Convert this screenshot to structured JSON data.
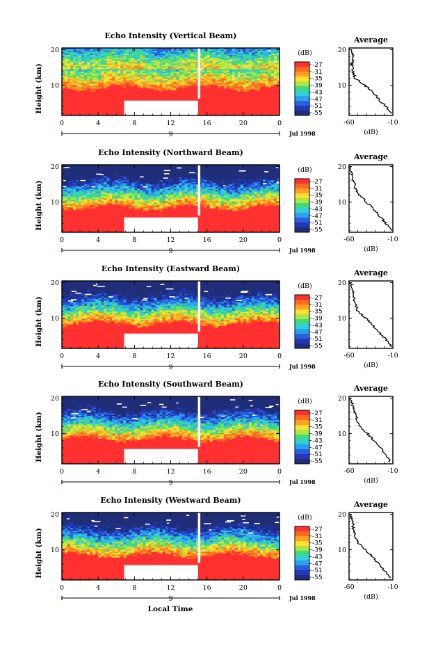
{
  "colors": {
    "red": "#ff4040",
    "white": "#ffffff",
    "frame": "#000000",
    "colorbar": [
      "#ff3030",
      "#ff6a20",
      "#ffa020",
      "#ffe030",
      "#a8e840",
      "#40d880",
      "#30d0d8",
      "#2aa0f0",
      "#2860e0",
      "#2238b8",
      "#202e7a"
    ]
  },
  "labels": {
    "ylabel": "Height (km)",
    "xlabel": "Local Time",
    "unit": "(dB)",
    "average_title": "Average",
    "average_xlabel": "(dB)",
    "date": "Jul 1998",
    "day": "9"
  },
  "chart_data": [
    {
      "type": "heatmap",
      "title": "Echo Intensity (Vertical Beam)",
      "x_ticks": [
        "0",
        "4",
        "8",
        "12",
        "16",
        "20",
        "0"
      ],
      "y_ticks": [
        "20",
        "10"
      ],
      "xlim": [
        0,
        24
      ],
      "ylim": [
        1.5,
        20.5
      ],
      "colorbar_ticks": [
        "-27",
        "-31",
        "-35",
        "-39",
        "-43",
        "-47",
        "-51",
        "-55"
      ],
      "profile": {
        "title": "Average",
        "xlabel": "(dB)",
        "x_ticks": [
          "-60",
          "-10"
        ],
        "y_ticks": [
          "20",
          "10"
        ],
        "xlim": [
          -60,
          -10
        ],
        "points": [
          [
            -10,
            2
          ],
          [
            -18,
            4
          ],
          [
            -26,
            6
          ],
          [
            -32,
            8
          ],
          [
            -42,
            10
          ],
          [
            -53,
            12
          ],
          [
            -56,
            14
          ],
          [
            -57,
            16
          ],
          [
            -55,
            18
          ],
          [
            -57,
            20
          ]
        ]
      }
    },
    {
      "type": "heatmap",
      "title": "Echo Intensity (Northward Beam)",
      "x_ticks": [
        "0",
        "4",
        "8",
        "12",
        "16",
        "20",
        "0"
      ],
      "y_ticks": [
        "20",
        "10"
      ],
      "xlim": [
        0,
        24
      ],
      "ylim": [
        1.5,
        20.5
      ],
      "colorbar_ticks": [
        "-27",
        "-31",
        "-35",
        "-39",
        "-43",
        "-47",
        "-51",
        "-55"
      ],
      "profile": {
        "title": "Average",
        "xlabel": "(dB)",
        "x_ticks": [
          "-60",
          "-10"
        ],
        "y_ticks": [
          "20",
          "10"
        ],
        "xlim": [
          -60,
          -10
        ],
        "points": [
          [
            -12,
            2
          ],
          [
            -18,
            4
          ],
          [
            -25,
            6
          ],
          [
            -32,
            8
          ],
          [
            -40,
            10
          ],
          [
            -48,
            12
          ],
          [
            -53,
            14
          ],
          [
            -55,
            16
          ],
          [
            -57,
            18
          ],
          [
            -58,
            20
          ]
        ]
      }
    },
    {
      "type": "heatmap",
      "title": "Echo Intensity (Eastward Beam)",
      "x_ticks": [
        "0",
        "4",
        "8",
        "12",
        "16",
        "20",
        "0"
      ],
      "y_ticks": [
        "20",
        "10"
      ],
      "xlim": [
        0,
        24
      ],
      "ylim": [
        1.5,
        20.5
      ],
      "colorbar_ticks": [
        "-27",
        "-31",
        "-35",
        "-39",
        "-43",
        "-47",
        "-51",
        "-55"
      ],
      "profile": {
        "title": "Average",
        "xlabel": "(dB)",
        "x_ticks": [
          "-60",
          "-10"
        ],
        "y_ticks": [
          "20",
          "10"
        ],
        "xlim": [
          -60,
          -10
        ],
        "points": [
          [
            -12,
            2
          ],
          [
            -18,
            4
          ],
          [
            -26,
            6
          ],
          [
            -33,
            8
          ],
          [
            -41,
            10
          ],
          [
            -50,
            12
          ],
          [
            -53,
            14
          ],
          [
            -55,
            16
          ],
          [
            -56,
            18
          ],
          [
            -58,
            20
          ]
        ]
      }
    },
    {
      "type": "heatmap",
      "title": "Echo Intensity (Southward Beam)",
      "x_ticks": [
        "0",
        "4",
        "8",
        "12",
        "16",
        "20",
        "0"
      ],
      "y_ticks": [
        "20",
        "10"
      ],
      "xlim": [
        0,
        24
      ],
      "ylim": [
        1.5,
        20.5
      ],
      "colorbar_ticks": [
        "-27",
        "-31",
        "-35",
        "-39",
        "-43",
        "-47",
        "-51",
        "-55"
      ],
      "profile": {
        "title": "Average",
        "xlabel": "(dB)",
        "x_ticks": [
          "-60",
          "-10"
        ],
        "y_ticks": [
          "20",
          "10"
        ],
        "xlim": [
          -60,
          -10
        ],
        "points": [
          [
            -13,
            2
          ],
          [
            -17,
            4
          ],
          [
            -24,
            6
          ],
          [
            -32,
            8
          ],
          [
            -39,
            10
          ],
          [
            -47,
            12
          ],
          [
            -51,
            14
          ],
          [
            -54,
            16
          ],
          [
            -56,
            18
          ],
          [
            -58,
            20
          ]
        ]
      }
    },
    {
      "type": "heatmap",
      "title": "Echo Intensity (Westward Beam)",
      "x_ticks": [
        "0",
        "4",
        "8",
        "12",
        "16",
        "20",
        "0"
      ],
      "y_ticks": [
        "20",
        "10"
      ],
      "xlim": [
        0,
        24
      ],
      "ylim": [
        1.5,
        20.5
      ],
      "colorbar_ticks": [
        "-27",
        "-31",
        "-35",
        "-39",
        "-43",
        "-47",
        "-51",
        "-55"
      ],
      "profile": {
        "title": "Average",
        "xlabel": "(dB)",
        "x_ticks": [
          "-60",
          "-10"
        ],
        "y_ticks": [
          "20",
          "10"
        ],
        "xlim": [
          -60,
          -10
        ],
        "points": [
          [
            -12,
            2
          ],
          [
            -19,
            4
          ],
          [
            -26,
            6
          ],
          [
            -33,
            8
          ],
          [
            -41,
            10
          ],
          [
            -50,
            12
          ],
          [
            -53,
            14
          ],
          [
            -55,
            16
          ],
          [
            -56,
            18
          ],
          [
            -58,
            20
          ]
        ]
      }
    }
  ]
}
